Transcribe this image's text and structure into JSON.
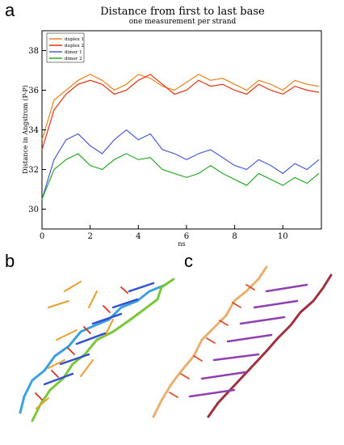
{
  "panels": {
    "a": "a",
    "b": "b",
    "c": "c"
  },
  "chart_data": {
    "type": "line",
    "title": "Distance from first to last base",
    "subtitle": "one measurement per strand",
    "xlabel": "ns",
    "ylabel": "Distance in Angstrom (P-P)",
    "xlim": [
      0,
      11.6
    ],
    "ylim": [
      29.0,
      39.0
    ],
    "xticks": [
      0,
      2,
      4,
      6,
      8,
      10
    ],
    "yticks": [
      30,
      32,
      34,
      36,
      38
    ],
    "grid": false,
    "legend_position": "top-left",
    "series": [
      {
        "name": "duplex 1",
        "color": "#e8831e",
        "x": [
          0,
          0.5,
          1,
          1.5,
          2,
          2.5,
          3,
          3.5,
          4,
          4.5,
          5,
          5.5,
          6,
          6.5,
          7,
          7.5,
          8,
          8.5,
          9,
          9.5,
          10,
          10.5,
          11,
          11.5
        ],
        "y": [
          33.5,
          35.5,
          36.0,
          36.5,
          36.8,
          36.5,
          36.0,
          36.3,
          36.8,
          36.6,
          36.2,
          36.0,
          36.4,
          36.8,
          36.5,
          36.6,
          36.3,
          36.0,
          36.5,
          36.3,
          36.0,
          36.5,
          36.3,
          36.2
        ]
      },
      {
        "name": "duplex 2",
        "color": "#e03010",
        "x": [
          0,
          0.5,
          1,
          1.5,
          2,
          2.5,
          3,
          3.5,
          4,
          4.5,
          5,
          5.5,
          6,
          6.5,
          7,
          7.5,
          8,
          8.5,
          9,
          9.5,
          10,
          10.5,
          11,
          11.5
        ],
        "y": [
          33.0,
          35.0,
          35.8,
          36.3,
          36.5,
          36.3,
          35.8,
          36.0,
          36.5,
          36.8,
          36.3,
          35.8,
          36.0,
          36.5,
          36.2,
          36.3,
          36.0,
          35.8,
          36.3,
          36.0,
          35.8,
          36.2,
          36.0,
          35.9
        ]
      },
      {
        "name": "dimer 1",
        "color": "#4a5fd0",
        "x": [
          0,
          0.5,
          1,
          1.5,
          2,
          2.5,
          3,
          3.5,
          4,
          4.5,
          5,
          5.5,
          6,
          6.5,
          7,
          7.5,
          8,
          8.5,
          9,
          9.5,
          10,
          10.5,
          11,
          11.5
        ],
        "y": [
          30.5,
          32.5,
          33.5,
          33.8,
          33.2,
          32.8,
          33.5,
          34.0,
          33.5,
          33.8,
          33.0,
          32.8,
          32.5,
          32.8,
          33.0,
          32.6,
          32.2,
          32.0,
          32.5,
          32.2,
          31.8,
          32.3,
          32.0,
          32.5
        ]
      },
      {
        "name": "dimer 2",
        "color": "#2ea82e",
        "x": [
          0,
          0.5,
          1,
          1.5,
          2,
          2.5,
          3,
          3.5,
          4,
          4.5,
          5,
          5.5,
          6,
          6.5,
          7,
          7.5,
          8,
          8.5,
          9,
          9.5,
          10,
          10.5,
          11,
          11.5
        ],
        "y": [
          30.5,
          32.0,
          32.5,
          32.8,
          32.2,
          32.0,
          32.5,
          32.8,
          32.5,
          32.6,
          32.0,
          31.8,
          31.6,
          31.8,
          32.2,
          31.8,
          31.5,
          31.2,
          31.8,
          31.5,
          31.2,
          31.6,
          31.3,
          31.8
        ]
      }
    ]
  }
}
